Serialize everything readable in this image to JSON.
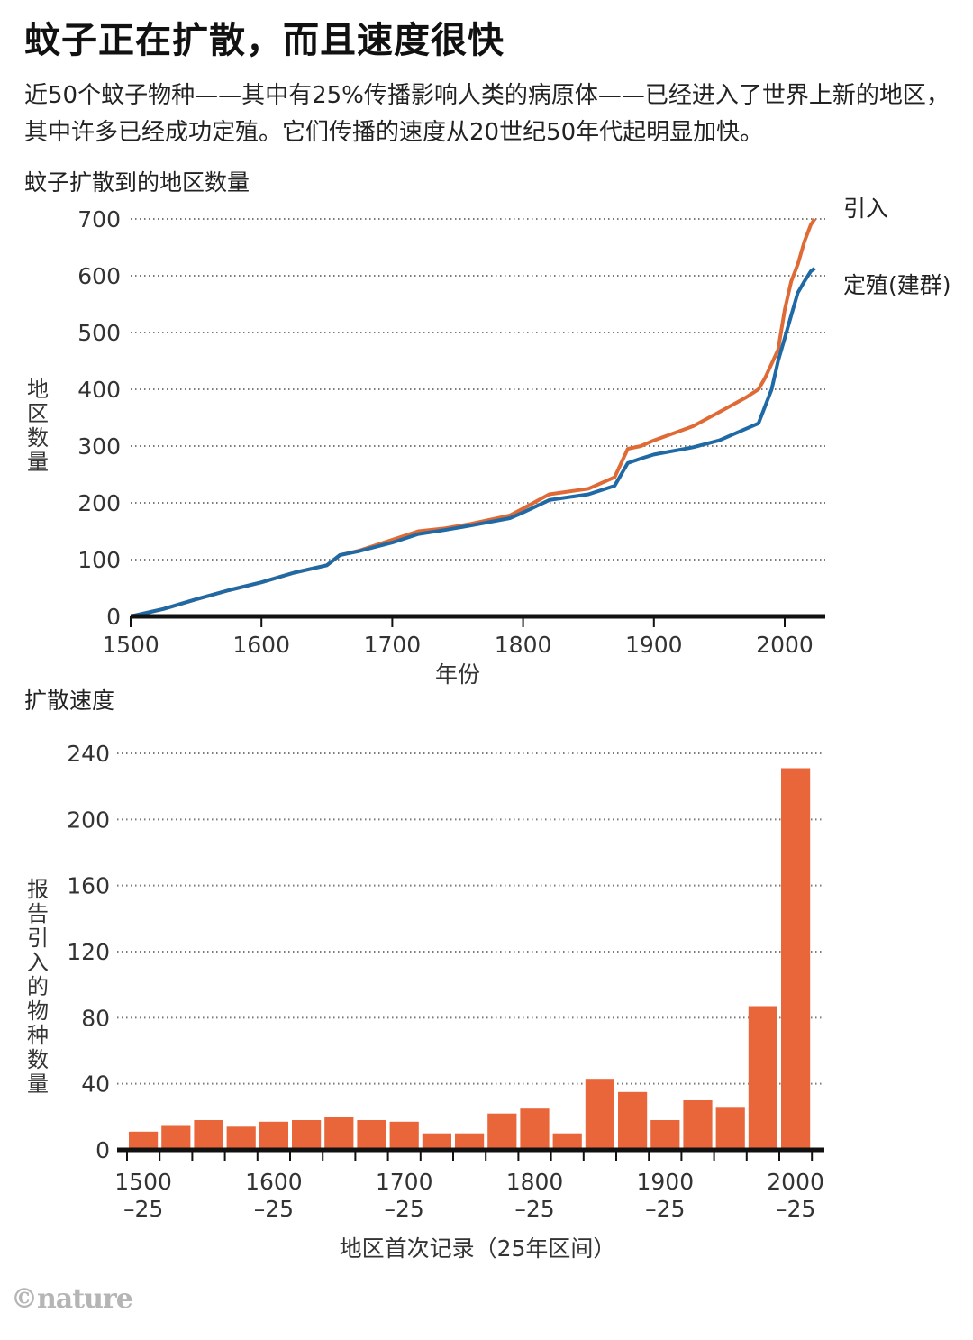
{
  "header": {
    "title": "蚊子正在扩散，而且速度很快",
    "subtitle": "近50个蚊子物种——其中有25%传播影响人类的病原体——已经进入了世界上新的地区，其中许多已经成功定殖。它们传播的速度从20世纪50年代起明显加快。"
  },
  "credit": "©nature",
  "colors": {
    "introduced": "#e06a35",
    "established": "#1f6aa5",
    "bar": "#e8663a",
    "axis": "#111111",
    "grid": "#7a7a7a"
  },
  "chart_data": [
    {
      "type": "line",
      "title": "蚊子扩散到的地区数量",
      "xlabel": "年份",
      "ylabel": "地区数量",
      "xlim": [
        1500,
        2023
      ],
      "ylim": [
        0,
        700
      ],
      "xticks": [
        1500,
        1600,
        1700,
        1800,
        1900,
        2000
      ],
      "yticks": [
        0,
        100,
        200,
        300,
        400,
        500,
        600,
        700
      ],
      "grid": "horizontal dotted",
      "series": [
        {
          "name": "引入",
          "color": "#e06a35",
          "x": [
            1500,
            1525,
            1550,
            1575,
            1600,
            1625,
            1650,
            1660,
            1675,
            1700,
            1720,
            1740,
            1760,
            1790,
            1800,
            1820,
            1850,
            1870,
            1880,
            1890,
            1900,
            1930,
            1950,
            1970,
            1980,
            1985,
            1990,
            1995,
            2000,
            2005,
            2010,
            2015,
            2020,
            2023
          ],
          "values": [
            0,
            13,
            30,
            46,
            60,
            77,
            90,
            108,
            116,
            135,
            150,
            155,
            163,
            178,
            190,
            215,
            225,
            245,
            295,
            300,
            310,
            335,
            360,
            385,
            400,
            420,
            445,
            470,
            540,
            590,
            620,
            660,
            690,
            700
          ]
        },
        {
          "name": "定殖(建群)",
          "color": "#1f6aa5",
          "x": [
            1500,
            1525,
            1550,
            1575,
            1600,
            1625,
            1650,
            1660,
            1675,
            1700,
            1720,
            1740,
            1760,
            1790,
            1800,
            1820,
            1850,
            1870,
            1880,
            1890,
            1900,
            1930,
            1950,
            1970,
            1980,
            1985,
            1990,
            1995,
            2000,
            2005,
            2010,
            2015,
            2020,
            2023
          ],
          "values": [
            0,
            13,
            30,
            46,
            60,
            77,
            90,
            108,
            115,
            130,
            145,
            152,
            160,
            173,
            183,
            205,
            215,
            230,
            270,
            278,
            285,
            298,
            310,
            330,
            340,
            370,
            400,
            450,
            490,
            530,
            570,
            590,
            608,
            613
          ]
        }
      ]
    },
    {
      "type": "bar",
      "title": "扩散速度",
      "xlabel": "地区首次记录（25年区间）",
      "ylabel": "报告引入的物种数量",
      "ylim": [
        0,
        240
      ],
      "yticks": [
        0,
        40,
        80,
        120,
        160,
        200,
        240
      ],
      "tick_labels": [
        {
          "line1": "1500",
          "line2": "–25"
        },
        {
          "line1": "1600",
          "line2": "–25"
        },
        {
          "line1": "1700",
          "line2": "–25"
        },
        {
          "line1": "1800",
          "line2": "–25"
        },
        {
          "line1": "1900",
          "line2": "–25"
        },
        {
          "line1": "2000",
          "line2": "–25"
        }
      ],
      "grid": "horizontal dotted",
      "categories": [
        "1500–25",
        "1525–50",
        "1550–75",
        "1575–1600",
        "1600–25",
        "1625–50",
        "1650–75",
        "1675–1700",
        "1700–25",
        "1725–50",
        "1750–75",
        "1775–1800",
        "1800–25",
        "1825–50",
        "1850–75",
        "1875–1900",
        "1900–25",
        "1925–50",
        "1950–75",
        "1975–2000",
        "2000–25"
      ],
      "values": [
        11,
        15,
        18,
        14,
        17,
        18,
        20,
        18,
        17,
        10,
        10,
        22,
        25,
        10,
        43,
        35,
        18,
        30,
        26,
        87,
        231
      ]
    }
  ]
}
